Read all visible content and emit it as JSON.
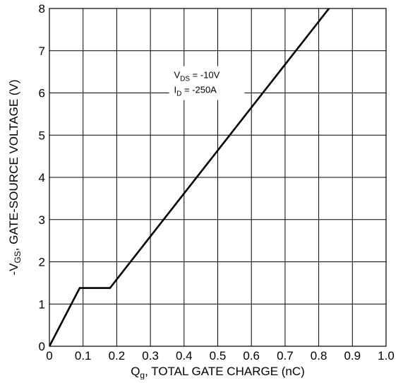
{
  "chart_data": {
    "type": "line",
    "title": "",
    "xlabel": {
      "main": "Q",
      "sub": "g",
      "rest": ", TOTAL GATE CHARGE (nC)"
    },
    "ylabel": {
      "main": "-V",
      "sub": "GS",
      "rest": ", GATE-SOURCE VOLTAGE (V)"
    },
    "xlim": [
      0,
      1.0
    ],
    "ylim": [
      0,
      8
    ],
    "x_ticks": [
      0,
      0.1,
      0.2,
      0.3,
      0.4,
      0.5,
      0.6,
      0.7,
      0.8,
      0.9,
      1.0
    ],
    "x_tick_labels": [
      "0",
      "0.1",
      "0.2",
      "0.3",
      "0.4",
      "0.5",
      "0.6",
      "0.7",
      "0.8",
      "0.9",
      "1.0"
    ],
    "y_ticks": [
      0,
      1,
      2,
      3,
      4,
      5,
      6,
      7,
      8
    ],
    "y_tick_labels": [
      "0",
      "1",
      "2",
      "3",
      "4",
      "5",
      "6",
      "7",
      "8"
    ],
    "grid": true,
    "series": [
      {
        "x": [
          0,
          0.09,
          0.18,
          0.85
        ],
        "y": [
          0,
          1.38,
          1.38,
          8.2
        ]
      }
    ],
    "annotations": {
      "line1": {
        "main": "V",
        "sub": "DS",
        "rest": " = -10V"
      },
      "line2": {
        "main": "I",
        "sub": "D",
        "rest": " = -250A"
      }
    },
    "colors": {
      "line": "#000000",
      "grid": "#000000",
      "background": "#ffffff"
    }
  }
}
